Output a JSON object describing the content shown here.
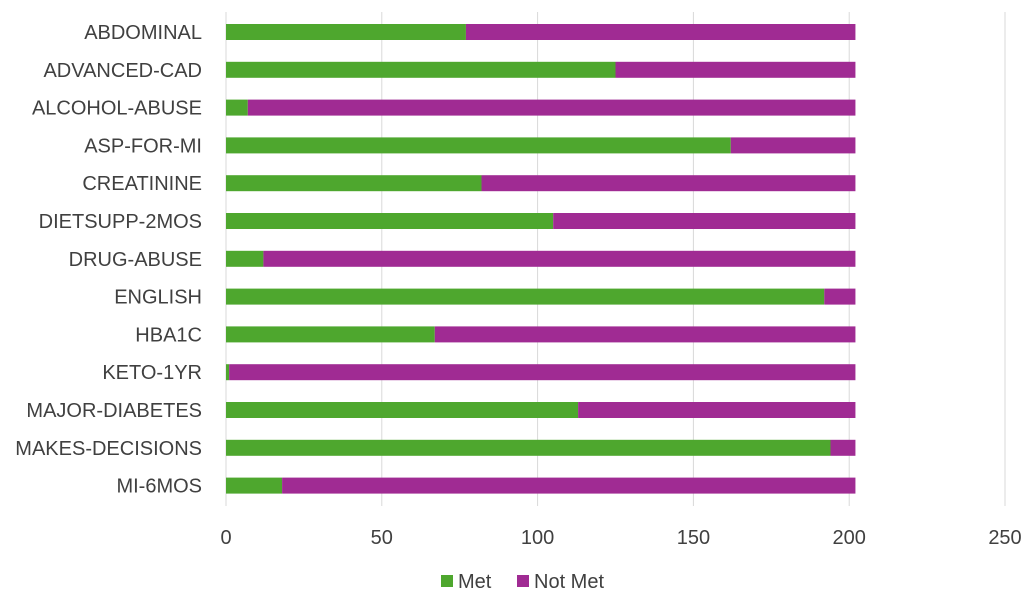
{
  "chart_data": {
    "type": "bar",
    "orientation": "horizontal",
    "stacked": true,
    "title": "",
    "xlabel": "",
    "ylabel": "",
    "xlim": [
      0,
      250
    ],
    "x_ticks": [
      0,
      50,
      100,
      150,
      200,
      250
    ],
    "grid": "vertical",
    "legend": "bottom",
    "categories": [
      "ABDOMINAL",
      "ADVANCED-CAD",
      "ALCOHOL-ABUSE",
      "ASP-FOR-MI",
      "CREATININE",
      "DIETSUPP-2MOS",
      "DRUG-ABUSE",
      "ENGLISH",
      "HBA1C",
      "KETO-1YR",
      "MAJOR-DIABETES",
      "MAKES-DECISIONS",
      "MI-6MOS"
    ],
    "series": [
      {
        "name": "Met",
        "color": "#4ea72e",
        "values": [
          77,
          125,
          7,
          162,
          82,
          105,
          12,
          192,
          67,
          1,
          113,
          194,
          18
        ]
      },
      {
        "name": "Not Met",
        "color": "#a02b93",
        "values": [
          125,
          77,
          195,
          40,
          120,
          97,
          190,
          10,
          135,
          201,
          89,
          8,
          184
        ]
      }
    ]
  }
}
